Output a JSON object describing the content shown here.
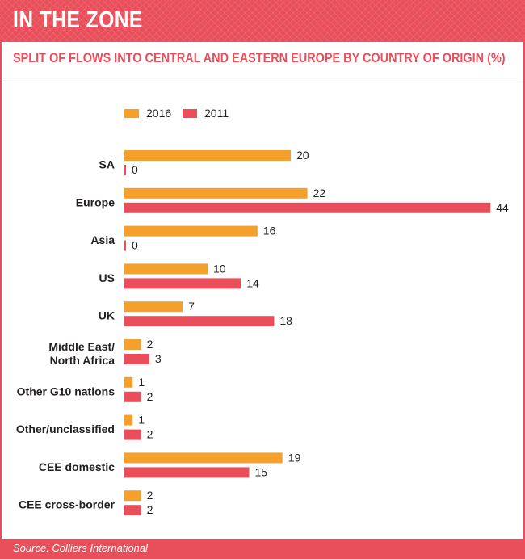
{
  "header": {
    "title": "IN THE ZONE"
  },
  "footer": {
    "source": "Source: Colliers International"
  },
  "colors": {
    "accent": "#e94f5a",
    "series_2016": "#f5a02a",
    "series_2011": "#e94f5a"
  },
  "chart_data": {
    "type": "bar",
    "orientation": "horizontal",
    "title": "SPLIT OF FLOWS INTO CENTRAL AND EASTERN EUROPE BY COUNTRY OF ORIGIN (%)",
    "xlabel": "",
    "ylabel": "",
    "categories": [
      "SA",
      "Europe",
      "Asia",
      "US",
      "UK",
      "Middle East/ North Africa",
      "Other G10 nations",
      "Other/unclassified",
      "CEE domestic",
      "CEE cross-border"
    ],
    "category_lines": [
      [
        "SA"
      ],
      [
        "Europe"
      ],
      [
        "Asia"
      ],
      [
        "US"
      ],
      [
        "UK"
      ],
      [
        "Middle East/",
        "North Africa"
      ],
      [
        "Other G10 nations"
      ],
      [
        "Other/unclassified"
      ],
      [
        "CEE domestic"
      ],
      [
        "CEE cross-border"
      ]
    ],
    "series": [
      {
        "name": "2016",
        "color": "#f5a02a",
        "values": [
          20,
          22,
          16,
          10,
          7,
          2,
          1,
          1,
          19,
          2
        ]
      },
      {
        "name": "2011",
        "color": "#e94f5a",
        "values": [
          0,
          44,
          0,
          14,
          18,
          3,
          2,
          2,
          15,
          2
        ]
      }
    ],
    "xlim": [
      0,
      44
    ],
    "legend": "top-left",
    "grid": false,
    "data_labels": true
  }
}
